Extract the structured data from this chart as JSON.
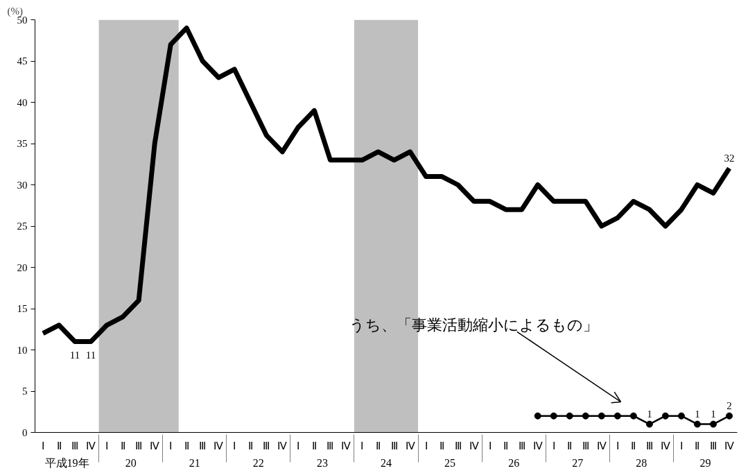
{
  "chart_data": {
    "type": "line",
    "ylabel": "(%)",
    "categories": [
      "Ⅰ",
      "Ⅱ",
      "Ⅲ",
      "Ⅳ",
      "Ⅰ",
      "Ⅱ",
      "Ⅲ",
      "Ⅳ",
      "Ⅰ",
      "Ⅱ",
      "Ⅲ",
      "Ⅳ",
      "Ⅰ",
      "Ⅱ",
      "Ⅲ",
      "Ⅳ",
      "Ⅰ",
      "Ⅱ",
      "Ⅲ",
      "Ⅳ",
      "Ⅰ",
      "Ⅱ",
      "Ⅲ",
      "Ⅳ",
      "Ⅰ",
      "Ⅱ",
      "Ⅲ",
      "Ⅳ",
      "Ⅰ",
      "Ⅱ",
      "Ⅲ",
      "Ⅳ",
      "Ⅰ",
      "Ⅱ",
      "Ⅲ",
      "Ⅳ",
      "Ⅰ",
      "Ⅱ",
      "Ⅲ",
      "Ⅳ",
      "Ⅰ",
      "Ⅱ",
      "Ⅲ",
      "Ⅳ"
    ],
    "series": [
      {
        "color": "#000000",
        "marker": "none",
        "values": [
          12,
          13,
          11,
          11,
          13,
          14,
          16,
          35,
          47,
          49,
          45,
          43,
          44,
          40,
          36,
          34,
          37,
          39,
          33,
          33,
          33,
          34,
          33,
          34,
          31,
          31,
          30,
          28,
          28,
          27,
          27,
          30,
          28,
          28,
          28,
          25,
          26,
          28,
          27,
          25,
          27,
          30,
          29,
          32
        ],
        "value_labels": [
          null,
          null,
          "11",
          "11",
          null,
          null,
          null,
          null,
          null,
          null,
          null,
          null,
          null,
          null,
          null,
          null,
          null,
          null,
          null,
          null,
          null,
          null,
          null,
          null,
          null,
          null,
          null,
          null,
          null,
          null,
          null,
          null,
          null,
          null,
          null,
          null,
          null,
          null,
          null,
          null,
          null,
          null,
          null,
          "32"
        ]
      },
      {
        "color": "#000000",
        "marker": "circle",
        "values": [
          null,
          null,
          null,
          null,
          null,
          null,
          null,
          null,
          null,
          null,
          null,
          null,
          null,
          null,
          null,
          null,
          null,
          null,
          null,
          null,
          null,
          null,
          null,
          null,
          null,
          null,
          null,
          null,
          null,
          null,
          null,
          2,
          2,
          2,
          2,
          2,
          2,
          2,
          1,
          2,
          2,
          1,
          1,
          2
        ],
        "value_labels": [
          null,
          null,
          null,
          null,
          null,
          null,
          null,
          null,
          null,
          null,
          null,
          null,
          null,
          null,
          null,
          null,
          null,
          null,
          null,
          null,
          null,
          null,
          null,
          null,
          null,
          null,
          null,
          null,
          null,
          null,
          null,
          null,
          null,
          null,
          null,
          null,
          null,
          null,
          "1",
          null,
          null,
          "1",
          "1",
          "2"
        ]
      }
    ],
    "annotations": [
      "平成19年",
      "20",
      "21",
      "22",
      "23",
      "24",
      "25",
      "26",
      "27",
      "28",
      "29",
      "うち、「事業活動縮小によるもの」"
    ],
    "ylim": [
      0,
      50
    ],
    "yticks": [
      0,
      5,
      10,
      15,
      20,
      25,
      30,
      35,
      40,
      45,
      50
    ],
    "grid": false
  }
}
